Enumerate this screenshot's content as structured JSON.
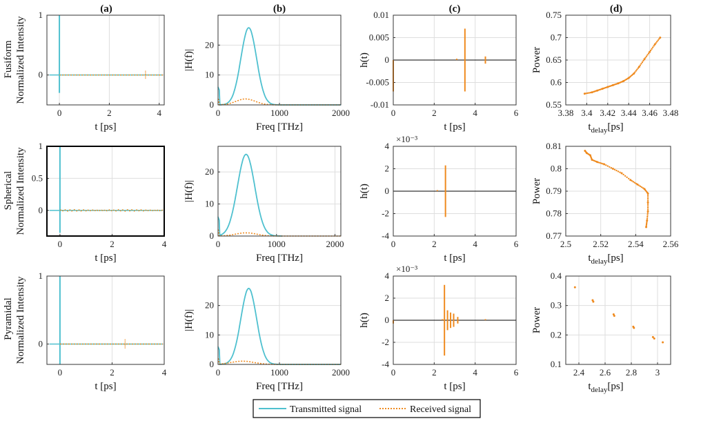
{
  "colors": {
    "transmitted": "#4ec0cf",
    "received": "#ef8a1e",
    "zero_line": "#000000"
  },
  "column_titles": [
    "(a)",
    "(b)",
    "(c)",
    "(d)"
  ],
  "row_labels": [
    "Fusiform",
    "Spherical",
    "Pyramidal"
  ],
  "legend": {
    "transmitted": "Transmitted signal",
    "received": "Received signal"
  },
  "chart_data": [
    {
      "id": "a1",
      "type": "line",
      "row": 0,
      "col": 0,
      "ylabel": "Normalized Intensity",
      "xlabel": "t [ps]",
      "xlim": [
        -0.5,
        4.2
      ],
      "ylim": [
        -0.5,
        1
      ],
      "xticks": [
        "0",
        "2",
        "4"
      ],
      "xtick_values": [
        0,
        2,
        4
      ],
      "yticks": [
        "1",
        "0"
      ],
      "ytick_values": [
        1,
        0
      ],
      "series": [
        {
          "name": "Transmitted signal",
          "pulse_at": 0,
          "peak": 1,
          "trough": -0.3
        },
        {
          "name": "Received signal",
          "level": 0,
          "blip_at": 3.45
        }
      ]
    },
    {
      "id": "b1",
      "type": "line",
      "row": 0,
      "col": 1,
      "ylabel": "|H(f)|",
      "xlabel": "Freq [THz]",
      "xlim": [
        0,
        2000
      ],
      "ylim": [
        0,
        30
      ],
      "xticks": [
        "0",
        "1000",
        "2000"
      ],
      "xtick_values": [
        0,
        1000,
        2000
      ],
      "yticks": [
        "20",
        "10",
        "0"
      ],
      "ytick_values": [
        20,
        10,
        0
      ],
      "series": [
        {
          "name": "Transmitted signal",
          "peak_freq": 500,
          "peak": 25.8,
          "width": 180
        },
        {
          "name": "Received signal",
          "peak_freq": 450,
          "peak": 2,
          "width": 220
        }
      ]
    },
    {
      "id": "c1",
      "type": "stem",
      "row": 0,
      "col": 2,
      "ylabel": "h(t)",
      "xlabel": "t [ps]",
      "exponent": "",
      "xlim": [
        0,
        6
      ],
      "ylim": [
        -0.01,
        0.01
      ],
      "xticks": [
        "0",
        "2",
        "4",
        "6"
      ],
      "xtick_values": [
        0,
        2,
        4,
        6
      ],
      "yticks": [
        "0.01",
        "0.005",
        "0",
        "-0.005",
        "-0.01"
      ],
      "ytick_values": [
        0.01,
        0.005,
        0,
        -0.005,
        -0.01
      ],
      "stems": [
        [
          0,
          -0.007
        ],
        [
          3.5,
          0.007
        ],
        [
          3.5,
          -0.007
        ],
        [
          3.1,
          0.0003
        ],
        [
          4.5,
          0.0008
        ],
        [
          4.5,
          -0.0008
        ]
      ]
    },
    {
      "id": "d1",
      "type": "scatter",
      "row": 0,
      "col": 3,
      "ylabel": "Power",
      "xlabel": "t",
      "xlabel_sub": "delay",
      "xlabel_unit": "[ps]",
      "xlim": [
        3.38,
        3.48
      ],
      "ylim": [
        0.55,
        0.75
      ],
      "xticks": [
        "3.38",
        "3.4",
        "3.42",
        "3.44",
        "3.46",
        "3.48"
      ],
      "xtick_values": [
        3.38,
        3.4,
        3.42,
        3.44,
        3.46,
        3.48
      ],
      "yticks": [
        "0.75",
        "0.7",
        "0.65",
        "0.6",
        "0.55"
      ],
      "ytick_values": [
        0.75,
        0.7,
        0.65,
        0.6,
        0.55
      ],
      "points": [
        [
          3.398,
          0.575
        ],
        [
          3.405,
          0.578
        ],
        [
          3.41,
          0.582
        ],
        [
          3.415,
          0.586
        ],
        [
          3.42,
          0.59
        ],
        [
          3.425,
          0.594
        ],
        [
          3.43,
          0.598
        ],
        [
          3.435,
          0.603
        ],
        [
          3.44,
          0.61
        ],
        [
          3.445,
          0.62
        ],
        [
          3.45,
          0.635
        ],
        [
          3.455,
          0.652
        ],
        [
          3.46,
          0.668
        ],
        [
          3.465,
          0.685
        ],
        [
          3.47,
          0.7
        ]
      ]
    },
    {
      "id": "a2",
      "type": "line",
      "row": 1,
      "col": 0,
      "ylabel": "Normalized Intensity",
      "xlabel": "t [ps]",
      "xlim": [
        -0.5,
        4
      ],
      "ylim": [
        -0.4,
        1
      ],
      "xticks": [
        "0",
        "2",
        "4"
      ],
      "xtick_values": [
        0,
        2,
        4
      ],
      "yticks": [
        "1",
        "0.5",
        "0"
      ],
      "ytick_values": [
        1,
        0.5,
        0
      ],
      "series": [
        {
          "name": "Transmitted signal",
          "pulse_at": 0,
          "peak": 1,
          "trough": -0.35
        },
        {
          "name": "Received signal",
          "level": 0,
          "noise": true
        }
      ]
    },
    {
      "id": "b2",
      "type": "line",
      "row": 1,
      "col": 1,
      "ylabel": "|H(f)|",
      "xlabel": "Freq [THz]",
      "xlim": [
        0,
        2100
      ],
      "ylim": [
        0,
        28
      ],
      "xticks": [
        "0",
        "1000",
        "2000"
      ],
      "xtick_values": [
        0,
        1000,
        2000
      ],
      "yticks": [
        "20",
        "10",
        "0"
      ],
      "ytick_values": [
        20,
        10,
        0
      ],
      "series": [
        {
          "name": "Transmitted signal",
          "peak_freq": 480,
          "peak": 25.5,
          "width": 210,
          "cut": 1100
        },
        {
          "name": "Received signal",
          "peak_freq": 480,
          "peak": 1,
          "width": 250
        }
      ]
    },
    {
      "id": "c2",
      "type": "stem",
      "row": 1,
      "col": 2,
      "ylabel": "h(t)",
      "xlabel": "t [ps]",
      "exponent": "×10⁻³",
      "xlim": [
        0,
        6
      ],
      "ylim": [
        -4,
        4
      ],
      "xticks": [
        "0",
        "2",
        "4",
        "6"
      ],
      "xtick_values": [
        0,
        2,
        4,
        6
      ],
      "yticks": [
        "4",
        "2",
        "0",
        "-2",
        "-4"
      ],
      "ytick_values": [
        4,
        2,
        0,
        -2,
        -4
      ],
      "stems": [
        [
          2.55,
          2.3
        ],
        [
          2.55,
          -2.3
        ],
        [
          2.15,
          0.1
        ]
      ]
    },
    {
      "id": "d2",
      "type": "scatter",
      "row": 1,
      "col": 3,
      "ylabel": "Power",
      "xlabel": "t",
      "xlabel_sub": "delay",
      "xlabel_unit": "[ps]",
      "xlim": [
        2.5,
        2.56
      ],
      "ylim": [
        0.77,
        0.81
      ],
      "xticks": [
        "2.5",
        "2.52",
        "2.54",
        "2.56"
      ],
      "xtick_values": [
        2.5,
        2.52,
        2.54,
        2.56
      ],
      "yticks": [
        "0.81",
        "0.8",
        "0.79",
        "0.78",
        "0.77"
      ],
      "ytick_values": [
        0.81,
        0.8,
        0.79,
        0.78,
        0.77
      ],
      "points": [
        [
          2.511,
          0.808
        ],
        [
          2.512,
          0.807
        ],
        [
          2.514,
          0.806
        ],
        [
          2.515,
          0.804
        ],
        [
          2.518,
          0.803
        ],
        [
          2.522,
          0.802
        ],
        [
          2.527,
          0.8
        ],
        [
          2.532,
          0.798
        ],
        [
          2.537,
          0.795
        ],
        [
          2.541,
          0.793
        ],
        [
          2.545,
          0.791
        ],
        [
          2.547,
          0.789
        ],
        [
          2.547,
          0.785
        ],
        [
          2.547,
          0.781
        ],
        [
          2.5465,
          0.777
        ],
        [
          2.546,
          0.774
        ]
      ]
    },
    {
      "id": "a3",
      "type": "line",
      "row": 2,
      "col": 0,
      "ylabel": "Normalized Intensity",
      "xlabel": "t [ps]",
      "xlim": [
        -0.5,
        4
      ],
      "ylim": [
        -0.3,
        1
      ],
      "xticks": [
        "0",
        "2",
        "4"
      ],
      "xtick_values": [
        0,
        2,
        4
      ],
      "yticks": [
        "1",
        "0"
      ],
      "ytick_values": [
        1,
        0
      ],
      "series": [
        {
          "name": "Transmitted signal",
          "pulse_at": 0,
          "peak": 1,
          "trough": -0.3
        },
        {
          "name": "Received signal",
          "level": 0,
          "blip_at": 2.5
        }
      ]
    },
    {
      "id": "b3",
      "type": "line",
      "row": 2,
      "col": 1,
      "ylabel": "|H(f)|",
      "xlabel": "Freq [THz]",
      "xlim": [
        0,
        2000
      ],
      "ylim": [
        0,
        30
      ],
      "xticks": [
        "0",
        "1000",
        "2000"
      ],
      "xtick_values": [
        0,
        1000,
        2000
      ],
      "yticks": [
        "20",
        "10",
        "0"
      ],
      "ytick_values": [
        20,
        10,
        0
      ],
      "series": [
        {
          "name": "Transmitted signal",
          "peak_freq": 500,
          "peak": 25.8,
          "width": 180
        },
        {
          "name": "Received signal",
          "peak_freq": 400,
          "peak": 1.1,
          "width": 260
        }
      ]
    },
    {
      "id": "c3",
      "type": "stem",
      "row": 2,
      "col": 2,
      "ylabel": "h(t)",
      "xlabel": "t [ps]",
      "exponent": "×10⁻³",
      "xlim": [
        0,
        6
      ],
      "ylim": [
        -4,
        4
      ],
      "xticks": [
        "0",
        "2",
        "4",
        "6"
      ],
      "xtick_values": [
        0,
        2,
        4,
        6
      ],
      "yticks": [
        "4",
        "2",
        "0",
        "-2",
        "-4"
      ],
      "ytick_values": [
        4,
        2,
        0,
        -2,
        -4
      ],
      "stems": [
        [
          2.5,
          3.2
        ],
        [
          2.5,
          -3.2
        ],
        [
          2.65,
          0.9
        ],
        [
          2.65,
          -0.9
        ],
        [
          2.8,
          0.7
        ],
        [
          2.8,
          -0.7
        ],
        [
          2.95,
          0.6
        ],
        [
          2.95,
          -0.6
        ],
        [
          3.15,
          0.3
        ],
        [
          3.15,
          -0.3
        ],
        [
          2.4,
          0.1
        ],
        [
          4.5,
          0.1
        ],
        [
          0,
          -0.3
        ]
      ]
    },
    {
      "id": "d3",
      "type": "scatter",
      "row": 2,
      "col": 3,
      "ylabel": "Power",
      "xlabel": "t",
      "xlabel_sub": "delay",
      "xlabel_unit": "[ps]",
      "xlim": [
        2.3,
        3.1
      ],
      "ylim": [
        0.1,
        0.4
      ],
      "xticks": [
        "2.4",
        "2.6",
        "2.8",
        "3"
      ],
      "xtick_values": [
        2.4,
        2.6,
        2.8,
        3
      ],
      "yticks": [
        "0.4",
        "0.3",
        "0.2",
        "0.1"
      ],
      "ytick_values": [
        0.4,
        0.3,
        0.2,
        0.1
      ],
      "points": [
        [
          2.37,
          0.362
        ],
        [
          2.505,
          0.318
        ],
        [
          2.51,
          0.313
        ],
        [
          2.665,
          0.27
        ],
        [
          2.67,
          0.265
        ],
        [
          2.815,
          0.228
        ],
        [
          2.82,
          0.224
        ],
        [
          2.965,
          0.193
        ],
        [
          2.975,
          0.188
        ],
        [
          3.04,
          0.175
        ]
      ]
    }
  ]
}
